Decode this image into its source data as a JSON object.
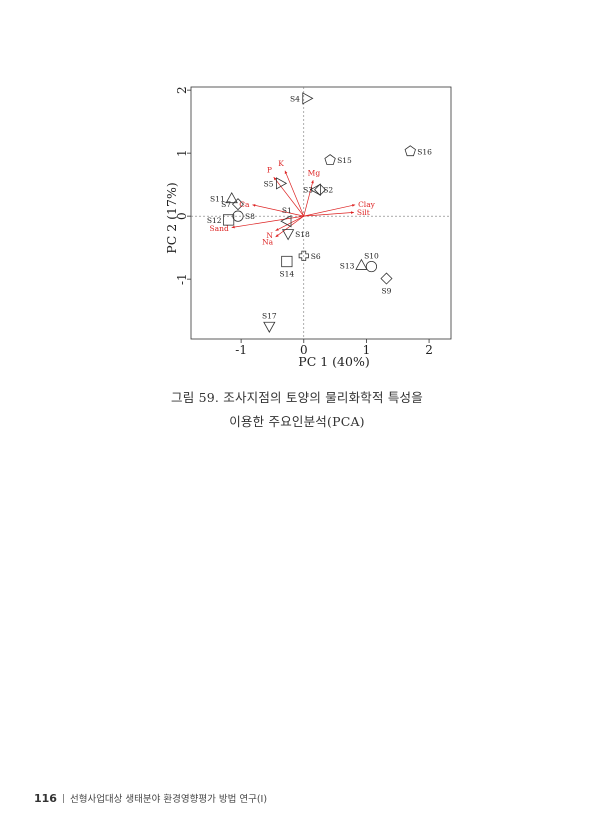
{
  "chart_data": {
    "type": "scatter",
    "xlabel": "PC 1 (40%)",
    "ylabel": "PC 2 (17%)",
    "xlim": [
      -1.8,
      2.35
    ],
    "ylim": [
      -1.95,
      2.05
    ],
    "xticks": [
      -1,
      0,
      1,
      2
    ],
    "yticks": [
      -1,
      0,
      1,
      2
    ],
    "tick_labels_x": [
      "-1",
      "0",
      "1",
      "2"
    ],
    "tick_labels_y": [
      "-1",
      "0",
      "1",
      "2"
    ],
    "reference_lines": "dashed lines at x=0 and y=0",
    "vector_color": "#dd2222",
    "sites": [
      {
        "name": "S4",
        "x": 0.05,
        "y": 1.87,
        "shape": "triangle-right",
        "label_pos": "left"
      },
      {
        "name": "S16",
        "x": 1.7,
        "y": 1.03,
        "shape": "pentagon",
        "label_pos": "right"
      },
      {
        "name": "S15",
        "x": 0.42,
        "y": 0.89,
        "shape": "pentagon",
        "label_pos": "right"
      },
      {
        "name": "S5",
        "x": -0.37,
        "y": 0.52,
        "shape": "triangle-right",
        "label_pos": "left"
      },
      {
        "name": "S3",
        "x": 0.26,
        "y": 0.42,
        "shape": "diamond",
        "label_pos": "left"
      },
      {
        "name": "S2",
        "x": 0.2,
        "y": 0.42,
        "shape": "triangle-left",
        "label_pos": "right"
      },
      {
        "name": "S11",
        "x": -1.15,
        "y": 0.28,
        "shape": "triangle-up",
        "label_pos": "left"
      },
      {
        "name": "S7",
        "x": -1.05,
        "y": 0.19,
        "shape": "diamond",
        "label_pos": "left"
      },
      {
        "name": "S8",
        "x": -1.05,
        "y": 0.0,
        "shape": "circle",
        "label_pos": "right"
      },
      {
        "name": "S12",
        "x": -1.2,
        "y": -0.06,
        "shape": "square",
        "label_pos": "left"
      },
      {
        "name": "S1",
        "x": -0.27,
        "y": -0.08,
        "shape": "triangle-left",
        "label_pos": "above"
      },
      {
        "name": "S18",
        "x": -0.25,
        "y": -0.28,
        "shape": "triangle-down",
        "label_pos": "right"
      },
      {
        "name": "S6",
        "x": 0.0,
        "y": -0.63,
        "shape": "plus",
        "label_pos": "right"
      },
      {
        "name": "S14",
        "x": -0.27,
        "y": -0.72,
        "shape": "square",
        "label_pos": "below"
      },
      {
        "name": "S13",
        "x": 0.92,
        "y": -0.78,
        "shape": "triangle-up",
        "label_pos": "left"
      },
      {
        "name": "S10",
        "x": 1.08,
        "y": -0.8,
        "shape": "circle",
        "label_pos": "above"
      },
      {
        "name": "S9",
        "x": 1.32,
        "y": -0.99,
        "shape": "diamond",
        "label_pos": "below"
      },
      {
        "name": "S17",
        "x": -0.55,
        "y": -1.75,
        "shape": "triangle-down",
        "label_pos": "above"
      }
    ],
    "vectors": [
      {
        "name": "P",
        "x": -0.48,
        "y": 0.62
      },
      {
        "name": "K",
        "x": -0.3,
        "y": 0.72
      },
      {
        "name": "Mg",
        "x": 0.15,
        "y": 0.57
      },
      {
        "name": "Ca",
        "x": -0.82,
        "y": 0.18
      },
      {
        "name": "Clay",
        "x": 0.82,
        "y": 0.18
      },
      {
        "name": "Silt",
        "x": 0.8,
        "y": 0.06
      },
      {
        "name": "Sand",
        "x": -1.15,
        "y": -0.18
      },
      {
        "name": "N",
        "x": -0.45,
        "y": -0.23
      },
      {
        "name": "Na",
        "x": -0.45,
        "y": -0.33
      }
    ]
  },
  "caption": {
    "line1": "그림 59. 조사지점의 토양의 물리화학적 특성을",
    "line2": "이용한 주요인분석(PCA)"
  },
  "footer": {
    "page_number": "116",
    "text": "선형사업대상 생태분야 환경영향평가 방법 연구(Ⅰ)"
  }
}
